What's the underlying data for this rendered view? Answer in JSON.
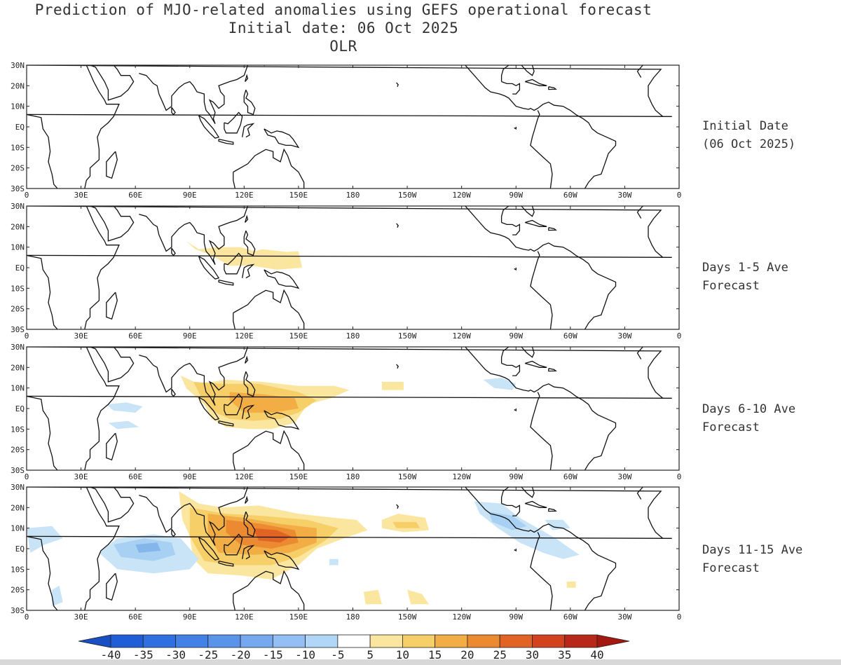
{
  "header": {
    "title": "Prediction of MJO-related anomalies using GEFS operational forecast",
    "subtitle": "Initial date: 06 Oct 2025",
    "variable": "OLR"
  },
  "lat_labels": [
    "30N",
    "20N",
    "10N",
    "EQ",
    "10S",
    "20S",
    "30S"
  ],
  "lon_labels": [
    "0",
    "30E",
    "60E",
    "90E",
    "120E",
    "150E",
    "180",
    "150W",
    "120W",
    "90W",
    "60W",
    "30W",
    "0"
  ],
  "panels": [
    {
      "label_line1": "Initial Date",
      "label_line2": "(06 Oct 2025)"
    },
    {
      "label_line1": "Days 1-5 Ave",
      "label_line2": "Forecast"
    },
    {
      "label_line1": "Days 6-10 Ave",
      "label_line2": "Forecast"
    },
    {
      "label_line1": "Days 11-15 Ave",
      "label_line2": "Forecast"
    }
  ],
  "colorbar": {
    "ticks": [
      "-40",
      "-35",
      "-30",
      "-25",
      "-20",
      "-15",
      "-10",
      "-5",
      "5",
      "10",
      "15",
      "20",
      "25",
      "30",
      "35",
      "40"
    ],
    "colors": [
      "#1f5ed6",
      "#2f6fe0",
      "#4281e6",
      "#5a93ea",
      "#76a8ef",
      "#93bff4",
      "#b2d6f7",
      "#ffffff",
      "#fbe6a0",
      "#f7cf69",
      "#f2ad45",
      "#eb8a30",
      "#e16425",
      "#d2421d",
      "#b82818"
    ],
    "end_low": "#1a4fc4",
    "end_high": "#a5180f"
  },
  "anomaly_colors": {
    "pos1": "#fbe6a0",
    "pos2": "#f7cf69",
    "pos3": "#f2ad45",
    "pos4": "#eb8a30",
    "pos5": "#e16425",
    "neg1": "#c9e4f7",
    "neg2": "#a8d0f2",
    "neg3": "#84b6ec"
  }
}
